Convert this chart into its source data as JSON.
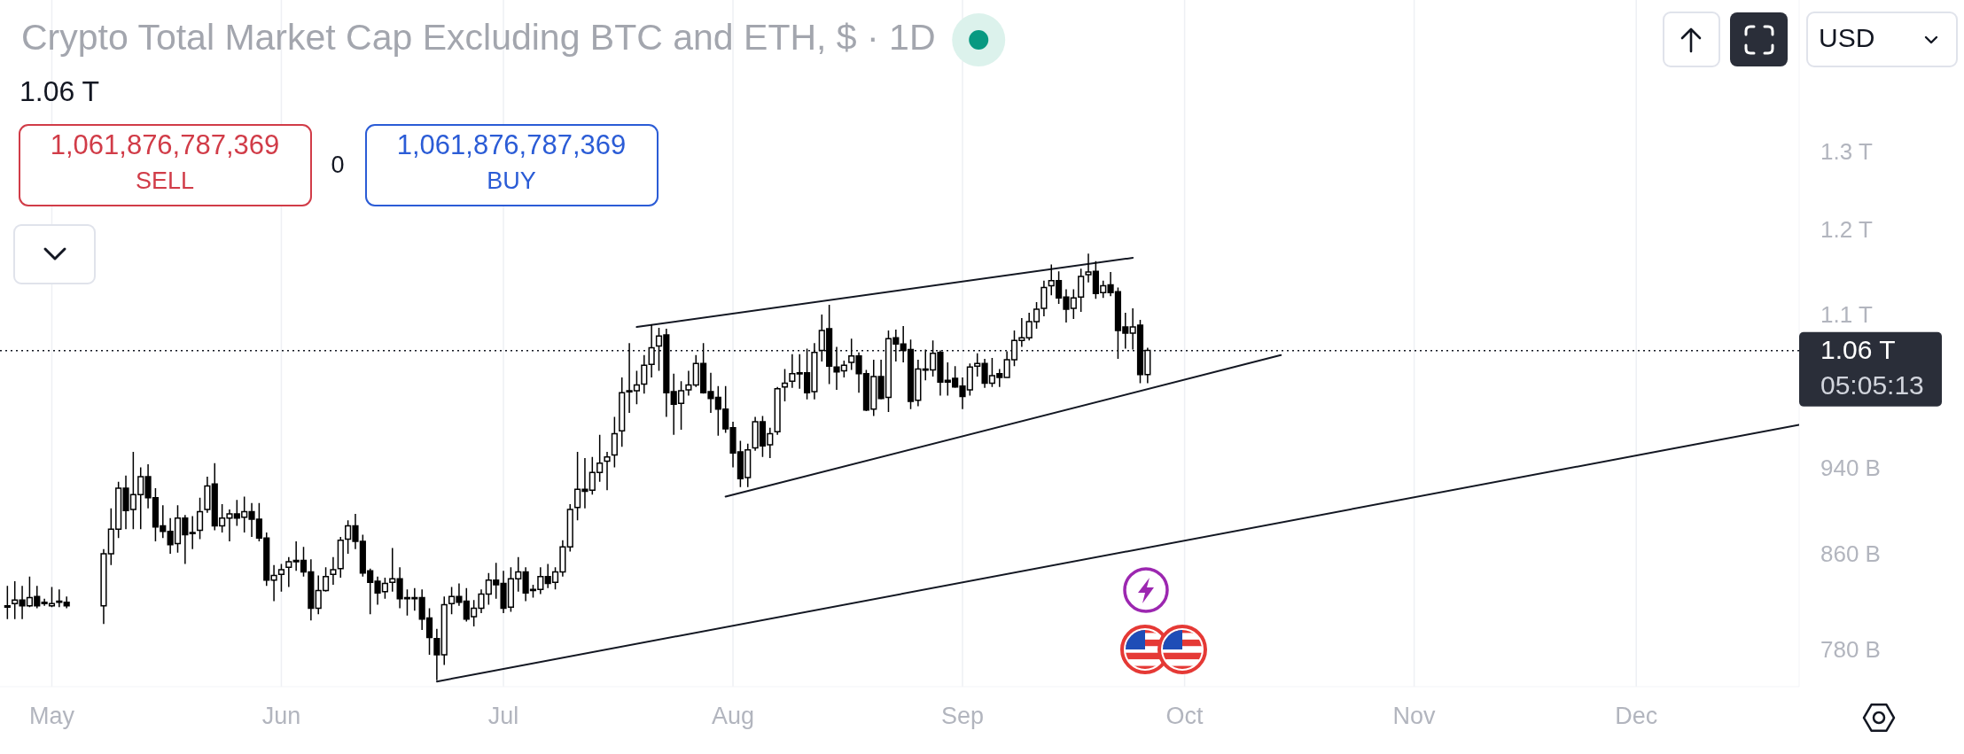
{
  "chart_data": {
    "type": "candlestick",
    "title": "Crypto Total Market Cap Excluding BTC and ETH, $ · 1D",
    "x": [
      "--04-25",
      "--04-26",
      "--04-27",
      "--04-28",
      "--04-29",
      "--04-30",
      "--05-01",
      "--05-02",
      "--05-03",
      "--05-08",
      "--05-09",
      "--05-10",
      "--05-11",
      "--05-12",
      "--05-13",
      "--05-14",
      "--05-15",
      "--05-16",
      "--05-17",
      "--05-18",
      "--05-19",
      "--05-20",
      "--05-21",
      "--05-22",
      "--05-23",
      "--05-24",
      "--05-25",
      "--05-26",
      "--05-27",
      "--05-28",
      "--05-29",
      "--05-30",
      "--05-31",
      "--06-01",
      "--06-02",
      "--06-03",
      "--06-04",
      "--06-05",
      "--06-06",
      "--06-07",
      "--06-08",
      "--06-09",
      "--06-10",
      "--06-11",
      "--06-12",
      "--06-13",
      "--06-14",
      "--06-15",
      "--06-16",
      "--06-17",
      "--06-18",
      "--06-19",
      "--06-20",
      "--06-21",
      "--06-22",
      "--06-23",
      "--06-24",
      "--06-25",
      "--06-26",
      "--06-27",
      "--06-28",
      "--06-29",
      "--06-30",
      "--07-01",
      "--07-02",
      "--07-03",
      "--07-04",
      "--07-05",
      "--07-06",
      "--07-07",
      "--07-08",
      "--07-09",
      "--07-10",
      "--07-11",
      "--07-12",
      "--07-13",
      "--07-14",
      "--07-15",
      "--07-16",
      "--07-17",
      "--07-18",
      "--07-19",
      "--07-20",
      "--07-21",
      "--07-22",
      "--07-23",
      "--07-24",
      "--07-25",
      "--07-26",
      "--07-27",
      "--07-28",
      "--07-29",
      "--07-30",
      "--07-31",
      "--08-01",
      "--08-02",
      "--08-03",
      "--08-04",
      "--08-05",
      "--08-06",
      "--08-07",
      "--08-08",
      "--08-09",
      "--08-10",
      "--08-11",
      "--08-12",
      "--08-13",
      "--08-14",
      "--08-15",
      "--08-16",
      "--08-17",
      "--08-18",
      "--08-19",
      "--08-20",
      "--08-21",
      "--08-22",
      "--08-23",
      "--08-24",
      "--08-25",
      "--08-26",
      "--08-27",
      "--08-28",
      "--08-29",
      "--08-30",
      "--08-31",
      "--09-01",
      "--09-02",
      "--09-03",
      "--09-04",
      "--09-05",
      "--09-06",
      "--09-07",
      "--09-08",
      "--09-09",
      "--09-10",
      "--09-11",
      "--09-12",
      "--09-13",
      "--09-14",
      "--09-15",
      "--09-16",
      "--09-17",
      "--09-18",
      "--09-19",
      "--09-20",
      "--09-21",
      "--09-22",
      "--09-23",
      "--09-24",
      "--09-25",
      "--09-26"
    ],
    "ohlc": [
      [
        816000000000.0,
        834000000000.0,
        806000000000.0,
        817000000000.0
      ],
      [
        819000000000.0,
        838000000000.0,
        806000000000.0,
        822000000000.0
      ],
      [
        822000000000.0,
        834000000000.0,
        806000000000.0,
        817000000000.0
      ],
      [
        817000000000.0,
        842000000000.0,
        816000000000.0,
        824000000000.0
      ],
      [
        825000000000.0,
        834000000000.0,
        815000000000.0,
        817000000000.0
      ],
      [
        820000000000.0,
        823000000000.0,
        817000000000.0,
        819000000000.0
      ],
      [
        817000000000.0,
        833000000000.0,
        816000000000.0,
        819000000000.0
      ],
      [
        821000000000.0,
        831000000000.0,
        816000000000.0,
        820000000000.0
      ],
      [
        820000000000.0,
        825000000000.0,
        815000000000.0,
        817000000000.0
      ],
      [
        817000000000.0,
        866000000000.0,
        802000000000.0,
        862000000000.0
      ],
      [
        862000000000.0,
        903000000000.0,
        852000000000.0,
        884000000000.0
      ],
      [
        884000000000.0,
        928000000000.0,
        876000000000.0,
        922000000000.0
      ],
      [
        922000000000.0,
        934000000000.0,
        884000000000.0,
        901000000000.0
      ],
      [
        902000000000.0,
        957000000000.0,
        884000000000.0,
        916000000000.0
      ],
      [
        916000000000.0,
        942000000000.0,
        884000000000.0,
        933000000000.0
      ],
      [
        933000000000.0,
        945000000000.0,
        903000000000.0,
        913000000000.0
      ],
      [
        913000000000.0,
        922000000000.0,
        873000000000.0,
        886000000000.0
      ],
      [
        887000000000.0,
        906000000000.0,
        876000000000.0,
        882000000000.0
      ],
      [
        882000000000.0,
        894000000000.0,
        862000000000.0,
        870000000000.0
      ],
      [
        871000000000.0,
        906000000000.0,
        863000000000.0,
        894000000000.0
      ],
      [
        894000000000.0,
        897000000000.0,
        853000000000.0,
        879000000000.0
      ],
      [
        881000000000.0,
        896000000000.0,
        866000000000.0,
        880000000000.0
      ],
      [
        883000000000.0,
        913000000000.0,
        875000000000.0,
        900000000000.0
      ],
      [
        902000000000.0,
        933000000000.0,
        899000000000.0,
        924000000000.0
      ],
      [
        926000000000.0,
        946000000000.0,
        883000000000.0,
        887000000000.0
      ],
      [
        887000000000.0,
        907000000000.0,
        881000000000.0,
        894000000000.0
      ],
      [
        894000000000.0,
        902000000000.0,
        873000000000.0,
        898000000000.0
      ],
      [
        898000000000.0,
        911000000000.0,
        887000000000.0,
        894000000000.0
      ],
      [
        895000000000.0,
        914000000000.0,
        881000000000.0,
        900000000000.0
      ],
      [
        900000000000.0,
        908000000000.0,
        877000000000.0,
        893000000000.0
      ],
      [
        893000000000.0,
        908000000000.0,
        873000000000.0,
        876000000000.0
      ],
      [
        876000000000.0,
        881000000000.0,
        834000000000.0,
        839000000000.0
      ],
      [
        839000000000.0,
        852000000000.0,
        821000000000.0,
        843000000000.0
      ],
      [
        844000000000.0,
        853000000000.0,
        829000000000.0,
        848000000000.0
      ],
      [
        850000000000.0,
        859000000000.0,
        833000000000.0,
        855000000000.0
      ],
      [
        856000000000.0,
        873000000000.0,
        847000000000.0,
        855000000000.0
      ],
      [
        856000000000.0,
        868000000000.0,
        842000000000.0,
        846000000000.0
      ],
      [
        846000000000.0,
        857000000000.0,
        805000000000.0,
        815000000000.0
      ],
      [
        815000000000.0,
        843000000000.0,
        810000000000.0,
        830000000000.0
      ],
      [
        830000000000.0,
        850000000000.0,
        829000000000.0,
        842000000000.0
      ],
      [
        844000000000.0,
        859000000000.0,
        835000000000.0,
        848000000000.0
      ],
      [
        849000000000.0,
        877000000000.0,
        841000000000.0,
        874000000000.0
      ],
      [
        875000000000.0,
        892000000000.0,
        862000000000.0,
        887000000000.0
      ],
      [
        887000000000.0,
        898000000000.0,
        866000000000.0,
        873000000000.0
      ],
      [
        873000000000.0,
        879000000000.0,
        842000000000.0,
        845000000000.0
      ],
      [
        847000000000.0,
        849000000000.0,
        810000000000.0,
        837000000000.0
      ],
      [
        838000000000.0,
        842000000000.0,
        818000000000.0,
        828000000000.0
      ],
      [
        829000000000.0,
        841000000000.0,
        823000000000.0,
        836000000000.0
      ],
      [
        837000000000.0,
        867000000000.0,
        829000000000.0,
        840000000000.0
      ],
      [
        840000000000.0,
        850000000000.0,
        815000000000.0,
        823000000000.0
      ],
      [
        824000000000.0,
        831000000000.0,
        809000000000.0,
        824000000000.0
      ],
      [
        824000000000.0,
        832000000000.0,
        813000000000.0,
        824000000000.0
      ],
      [
        824000000000.0,
        831000000000.0,
        797000000000.0,
        806000000000.0
      ],
      [
        807000000000.0,
        815000000000.0,
        777000000000.0,
        791000000000.0
      ],
      [
        790000000000.0,
        798000000000.0,
        757000000000.0,
        777000000000.0
      ],
      [
        777000000000.0,
        825000000000.0,
        769000000000.0,
        818000000000.0
      ],
      [
        819000000000.0,
        833000000000.0,
        810000000000.0,
        825000000000.0
      ],
      [
        825000000000.0,
        836000000000.0,
        817000000000.0,
        820000000000.0
      ],
      [
        821000000000.0,
        832000000000.0,
        804000000000.0,
        806000000000.0
      ],
      [
        808000000000.0,
        822000000000.0,
        800000000000.0,
        815000000000.0
      ],
      [
        815000000000.0,
        831000000000.0,
        811000000000.0,
        827000000000.0
      ],
      [
        827000000000.0,
        845000000000.0,
        818000000000.0,
        839000000000.0
      ],
      [
        839000000000.0,
        854000000000.0,
        823000000000.0,
        835000000000.0
      ],
      [
        836000000000.0,
        847000000000.0,
        811000000000.0,
        815000000000.0
      ],
      [
        816000000000.0,
        850000000000.0,
        812000000000.0,
        840000000000.0
      ],
      [
        840000000000.0,
        859000000000.0,
        829000000000.0,
        846000000000.0
      ],
      [
        846000000000.0,
        850000000000.0,
        821000000000.0,
        828000000000.0
      ],
      [
        831000000000.0,
        835000000000.0,
        824000000000.0,
        830000000000.0
      ],
      [
        831000000000.0,
        850000000000.0,
        827000000000.0,
        842000000000.0
      ],
      [
        842000000000.0,
        853000000000.0,
        832000000000.0,
        836000000000.0
      ],
      [
        837000000000.0,
        850000000000.0,
        831000000000.0,
        846000000000.0
      ],
      [
        846000000000.0,
        874000000000.0,
        842000000000.0,
        868000000000.0
      ],
      [
        868000000000.0,
        907000000000.0,
        864000000000.0,
        902000000000.0
      ],
      [
        904000000000.0,
        957000000000.0,
        892000000000.0,
        921000000000.0
      ],
      [
        921000000000.0,
        951000000000.0,
        903000000000.0,
        919000000000.0
      ],
      [
        920000000000.0,
        952000000000.0,
        916000000000.0,
        937000000000.0
      ],
      [
        937000000000.0,
        974000000000.0,
        928000000000.0,
        946000000000.0
      ],
      [
        948000000000.0,
        957000000000.0,
        920000000000.0,
        952000000000.0
      ],
      [
        954000000000.0,
        992000000000.0,
        942000000000.0,
        975000000000.0
      ],
      [
        978000000000.0,
        1033000000000.0,
        962000000000.0,
        1017000000000.0
      ],
      [
        1019000000000.0,
        1070000000000.0,
        996000000000.0,
        1018000000000.0
      ],
      [
        1019000000000.0,
        1040000000000.0,
        1005000000000.0,
        1025000000000.0
      ],
      [
        1026000000000.0,
        1057000000000.0,
        1016000000000.0,
        1046000000000.0
      ],
      [
        1047000000000.0,
        1091000000000.0,
        1033000000000.0,
        1065000000000.0
      ],
      [
        1067000000000.0,
        1087000000000.0,
        1040000000000.0,
        1078000000000.0
      ],
      [
        1079000000000.0,
        1086000000000.0,
        992000000000.0,
        1017000000000.0
      ],
      [
        1018000000000.0,
        1037000000000.0,
        974000000000.0,
        1005000000000.0
      ],
      [
        1006000000000.0,
        1029000000000.0,
        979000000000.0,
        1019000000000.0
      ],
      [
        1020000000000.0,
        1040000000000.0,
        1014000000000.0,
        1025000000000.0
      ],
      [
        1025000000000.0,
        1057000000000.0,
        1023000000000.0,
        1048000000000.0
      ],
      [
        1048000000000.0,
        1070000000000.0,
        1016000000000.0,
        1017000000000.0
      ],
      [
        1018000000000.0,
        1038000000000.0,
        996000000000.0,
        1011000000000.0
      ],
      [
        1012000000000.0,
        1024000000000.0,
        973000000000.0,
        1000000000000.0
      ],
      [
        1000000000000.0,
        1024000000000.0,
        976000000000.0,
        980000000000.0
      ],
      [
        981000000000.0,
        987000000000.0,
        942000000000.0,
        956000000000.0
      ],
      [
        957000000000.0,
        968000000000.0,
        923000000000.0,
        931000000000.0
      ],
      [
        932000000000.0,
        965000000000.0,
        923000000000.0,
        959000000000.0
      ],
      [
        961000000000.0,
        992000000000.0,
        958000000000.0,
        987000000000.0
      ],
      [
        987000000000.0,
        993000000000.0,
        952000000000.0,
        963000000000.0
      ],
      [
        964000000000.0,
        981000000000.0,
        951000000000.0,
        975000000000.0
      ],
      [
        977000000000.0,
        1023000000000.0,
        974000000000.0,
        1021000000000.0
      ],
      [
        1023000000000.0,
        1042000000000.0,
        1008000000000.0,
        1027000000000.0
      ],
      [
        1029000000000.0,
        1058000000000.0,
        1022000000000.0,
        1037000000000.0
      ],
      [
        1038000000000.0,
        1058000000000.0,
        1021000000000.0,
        1037000000000.0
      ],
      [
        1038000000000.0,
        1064000000000.0,
        1010000000000.0,
        1017000000000.0
      ],
      [
        1018000000000.0,
        1070000000000.0,
        1010000000000.0,
        1060000000000.0
      ],
      [
        1062000000000.0,
        1102000000000.0,
        1050000000000.0,
        1084000000000.0
      ],
      [
        1086000000000.0,
        1113000000000.0,
        1026000000000.0,
        1045000000000.0
      ],
      [
        1044000000000.0,
        1066000000000.0,
        1020000000000.0,
        1039000000000.0
      ],
      [
        1040000000000.0,
        1051000000000.0,
        1033000000000.0,
        1046000000000.0
      ],
      [
        1049000000000.0,
        1075000000000.0,
        1041000000000.0,
        1056000000000.0
      ],
      [
        1056000000000.0,
        1060000000000.0,
        1017000000000.0,
        1037000000000.0
      ],
      [
        1037000000000.0,
        1041000000000.0,
        998000000000.0,
        999000000000.0
      ],
      [
        1000000000000.0,
        1052000000000.0,
        993000000000.0,
        1034000000000.0
      ],
      [
        1034000000000.0,
        1052000000000.0,
        1010000000000.0,
        1011000000000.0
      ],
      [
        1012000000000.0,
        1084000000000.0,
        997000000000.0,
        1075000000000.0
      ],
      [
        1076000000000.0,
        1085000000000.0,
        1050000000000.0,
        1069000000000.0
      ],
      [
        1069000000000.0,
        1089000000000.0,
        1049000000000.0,
        1062000000000.0
      ],
      [
        1063000000000.0,
        1074000000000.0,
        1000000000000.0,
        1008000000000.0
      ],
      [
        1009000000000.0,
        1052000000000.0,
        1003000000000.0,
        1042000000000.0
      ],
      [
        1041000000000.0,
        1063000000000.0,
        1030000000000.0,
        1042000000000.0
      ],
      [
        1041000000000.0,
        1073000000000.0,
        1034000000000.0,
        1059000000000.0
      ],
      [
        1060000000000.0,
        1062000000000.0,
        1014000000000.0,
        1028000000000.0
      ],
      [
        1030000000000.0,
        1049000000000.0,
        1014000000000.0,
        1028000000000.0
      ],
      [
        1032000000000.0,
        1045000000000.0,
        1022000000000.0,
        1023000000000.0
      ],
      [
        1024000000000.0,
        1033000000000.0,
        1000000000000.0,
        1013000000000.0
      ],
      [
        1020000000000.0,
        1048000000000.0,
        1014000000000.0,
        1044000000000.0
      ],
      [
        1045000000000.0,
        1059000000000.0,
        1034000000000.0,
        1048000000000.0
      ],
      [
        1048000000000.0,
        1053000000000.0,
        1022000000000.0,
        1027000000000.0
      ],
      [
        1027000000000.0,
        1054000000000.0,
        1023000000000.0,
        1035000000000.0
      ],
      [
        1037000000000.0,
        1042000000000.0,
        1023000000000.0,
        1033000000000.0
      ],
      [
        1033000000000.0,
        1061000000000.0,
        1033000000000.0,
        1052000000000.0
      ],
      [
        1052000000000.0,
        1084000000000.0,
        1045000000000.0,
        1073000000000.0
      ],
      [
        1073000000000.0,
        1098000000000.0,
        1066000000000.0,
        1076000000000.0
      ],
      [
        1076000000000.0,
        1104000000000.0,
        1073000000000.0,
        1094000000000.0
      ],
      [
        1094000000000.0,
        1116000000000.0,
        1086000000000.0,
        1108000000000.0
      ],
      [
        1109000000000.0,
        1141000000000.0,
        1100000000000.0,
        1133000000000.0
      ],
      [
        1135000000000.0,
        1160000000000.0,
        1124000000000.0,
        1141000000000.0
      ],
      [
        1141000000000.0,
        1152000000000.0,
        1114000000000.0,
        1121000000000.0
      ],
      [
        1122000000000.0,
        1131000000000.0,
        1093000000000.0,
        1108000000000.0
      ],
      [
        1109000000000.0,
        1131000000000.0,
        1097000000000.0,
        1121000000000.0
      ],
      [
        1122000000000.0,
        1155000000000.0,
        1105000000000.0,
        1146000000000.0
      ],
      [
        1148000000000.0,
        1173000000000.0,
        1139000000000.0,
        1151000000000.0
      ],
      [
        1152000000000.0,
        1164000000000.0,
        1120000000000.0,
        1126000000000.0
      ],
      [
        1127000000000.0,
        1141000000000.0,
        1121000000000.0,
        1135000000000.0
      ],
      [
        1136000000000.0,
        1151000000000.0,
        1123000000000.0,
        1127000000000.0
      ],
      [
        1128000000000.0,
        1133000000000.0,
        1053000000000.0,
        1084000000000.0
      ],
      [
        1088000000000.0,
        1104000000000.0,
        1064000000000.0,
        1081000000000.0
      ],
      [
        1081000000000.0,
        1109000000000.0,
        1063000000000.0,
        1088000000000.0
      ],
      [
        1090000000000.0,
        1096000000000.0,
        1027000000000.0,
        1036000000000.0
      ],
      [
        1036000000000.0,
        1065000000000.0,
        1027000000000.0,
        1062000000000.0
      ]
    ],
    "color": "#000000",
    "series": [
      {
        "type": "line",
        "x": [
          "--07-19",
          "--09-24"
        ],
        "values": [
          1088000000000.0,
          1168000000000.0
        ],
        "color": "#131722"
      },
      {
        "type": "line",
        "x": [
          "--07-31",
          "--10-14"
        ],
        "values": [
          914000000000.0,
          1057000000000.0
        ],
        "color": "#131722"
      },
      {
        "type": "line",
        "x": [
          "--06-22",
          "--12-23"
        ],
        "values": [
          756000000000.0,
          984000000000.0
        ],
        "color": "#131722"
      }
    ],
    "xlim": [
      "--04-24",
      "--12-23"
    ],
    "xticks": [
      {
        "value": "--05-01",
        "label": "May"
      },
      {
        "value": "--06-01",
        "label": "Jun"
      },
      {
        "value": "--07-01",
        "label": "Jul"
      },
      {
        "value": "--08-01",
        "label": "Aug"
      },
      {
        "value": "--09-01",
        "label": "Sep"
      },
      {
        "value": "--10-01",
        "label": "Oct"
      },
      {
        "value": "--11-01",
        "label": "Nov"
      },
      {
        "value": "--12-01",
        "label": "Dec"
      }
    ],
    "ylim": [
      752000000000.0,
      1522000000000.0
    ],
    "log": true,
    "yticks": [
      {
        "value": 780000000000.0,
        "label": "780 B"
      },
      {
        "value": 860000000000.0,
        "label": "860 B"
      },
      {
        "value": 940000000000.0,
        "label": "940 B"
      },
      {
        "value": 1100000000000.0,
        "label": "1.1 T"
      },
      {
        "value": 1200000000000.0,
        "label": "1.2 T"
      },
      {
        "value": 1300000000000.0,
        "label": "1.3 T"
      }
    ],
    "grid": "x",
    "ref_lines": [
      {
        "axis": "y",
        "value": 1061876787369,
        "label": "1.06 T",
        "color": "#131722",
        "line_style": "dotted"
      }
    ],
    "annotations": [
      "1.06 T",
      "1,061,876,787,369",
      "SELL",
      "0",
      "1,061,876,787,369",
      "BUY",
      "05:05:13",
      "USD"
    ]
  }
}
